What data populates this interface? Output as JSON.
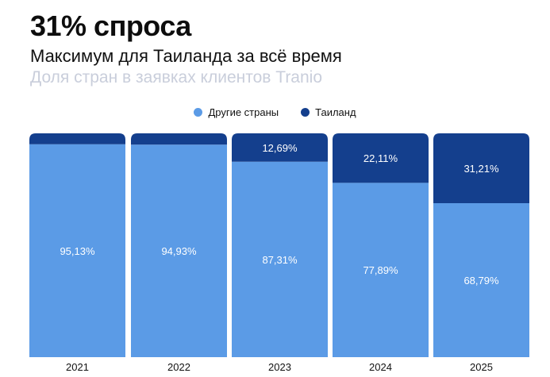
{
  "header": {
    "title": "31% спроса",
    "subtitle": "Максимум для Таиланда за всё время",
    "caption": "Доля стран в заявках клиентов Tranio"
  },
  "colors": {
    "other": "#5b9be6",
    "thailand": "#143f8d"
  },
  "chart_data": {
    "type": "bar",
    "stacked": true,
    "title": "31% спроса",
    "categories": [
      "2021",
      "2022",
      "2023",
      "2024",
      "2025"
    ],
    "series": [
      {
        "name": "Другие страны",
        "values": [
          95.13,
          94.93,
          87.31,
          77.89,
          68.79
        ],
        "labels": [
          "95,13%",
          "94,93%",
          "87,31%",
          "77,89%",
          "68,79%"
        ]
      },
      {
        "name": "Таиланд",
        "values": [
          4.87,
          5.07,
          12.69,
          22.11,
          31.21
        ],
        "labels": [
          "",
          "",
          "12,69%",
          "22,11%",
          "31,21%"
        ]
      }
    ],
    "ylim": [
      0,
      100
    ],
    "legend_position": "top-center"
  }
}
